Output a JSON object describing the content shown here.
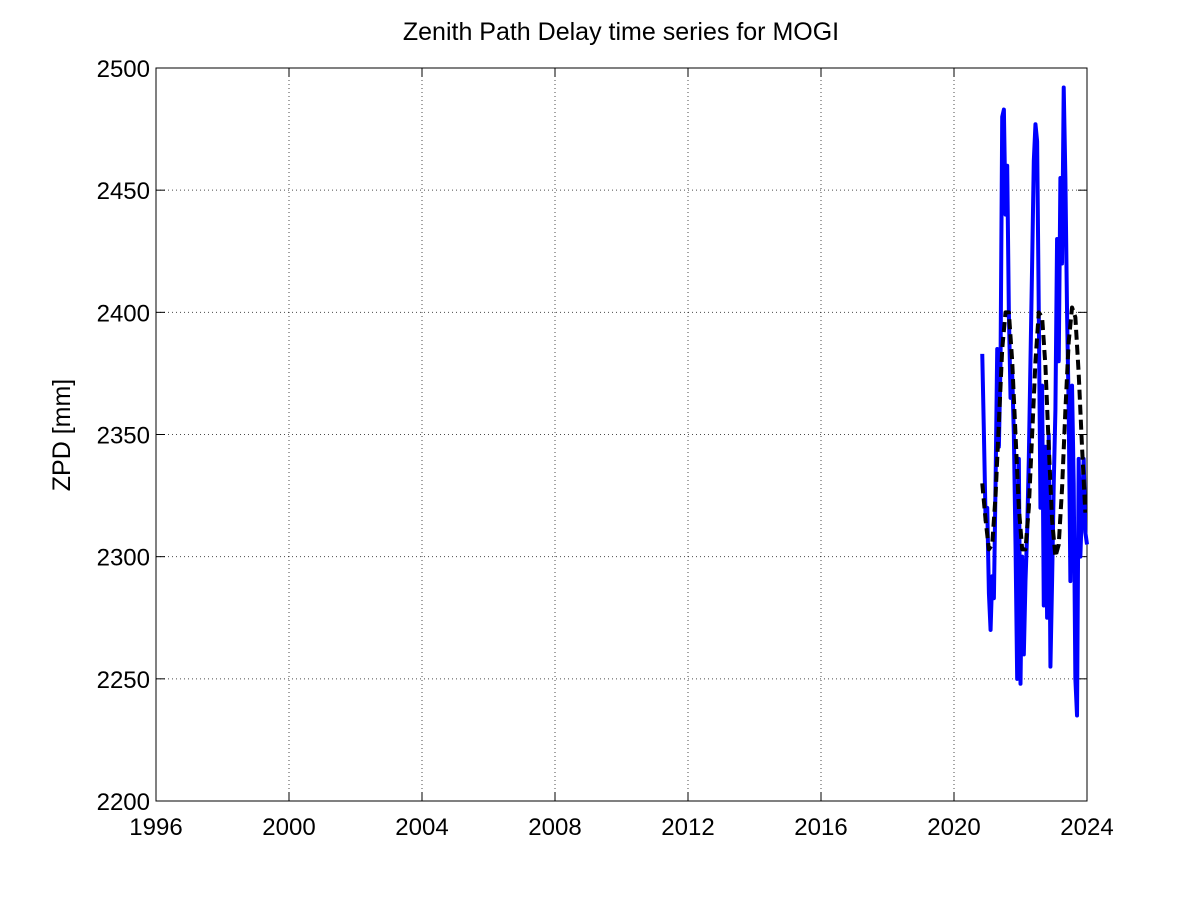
{
  "chart_data": {
    "type": "line",
    "title": "Zenith Path Delay time series for MOGI",
    "y_label": "ZPD [mm]",
    "xlim": [
      1996,
      2024
    ],
    "xticks": [
      1996,
      2000,
      2004,
      2008,
      2012,
      2016,
      2020,
      2024
    ],
    "ylim": [
      2200,
      2500
    ],
    "yticks": [
      2200,
      2250,
      2300,
      2350,
      2400,
      2450,
      2500
    ],
    "grid": true,
    "series": [
      {
        "color": "#0000ff",
        "dash": false,
        "x": [
          2020.85,
          2020.9,
          2020.95,
          2021.0,
          2021.05,
          2021.1,
          2021.15,
          2021.2,
          2021.25,
          2021.3,
          2021.35,
          2021.4,
          2021.45,
          2021.5,
          2021.55,
          2021.6,
          2021.65,
          2021.7,
          2021.75,
          2021.8,
          2021.85,
          2021.9,
          2021.95,
          2022.0,
          2022.05,
          2022.1,
          2022.15,
          2022.2,
          2022.25,
          2022.3,
          2022.35,
          2022.4,
          2022.45,
          2022.5,
          2022.55,
          2022.6,
          2022.65,
          2022.7,
          2022.75,
          2022.8,
          2022.85,
          2022.9,
          2022.95,
          2023.0,
          2023.05,
          2023.1,
          2023.15,
          2023.2,
          2023.25,
          2023.3,
          2023.35,
          2023.4,
          2023.45,
          2023.5,
          2023.55,
          2023.6,
          2023.65,
          2023.7,
          2023.75,
          2023.8,
          2023.85,
          2023.9,
          2023.95,
          2024.0
        ],
        "values": [
          2383,
          2350,
          2315,
          2320,
          2285,
          2270,
          2292,
          2283,
          2330,
          2385,
          2345,
          2380,
          2480,
          2483,
          2440,
          2460,
          2400,
          2365,
          2375,
          2350,
          2305,
          2250,
          2340,
          2248,
          2300,
          2260,
          2290,
          2310,
          2340,
          2380,
          2420,
          2462,
          2477,
          2470,
          2400,
          2320,
          2370,
          2280,
          2345,
          2275,
          2350,
          2255,
          2290,
          2330,
          2360,
          2430,
          2380,
          2455,
          2420,
          2492,
          2455,
          2400,
          2360,
          2290,
          2370,
          2330,
          2250,
          2235,
          2340,
          2300,
          2320,
          2340,
          2310,
          2305
        ]
      },
      {
        "color": "#000000",
        "dash": true,
        "x": [
          2020.85,
          2020.95,
          2021.05,
          2021.15,
          2021.25,
          2021.35,
          2021.45,
          2021.55,
          2021.65,
          2021.75,
          2021.85,
          2021.95,
          2022.05,
          2022.15,
          2022.25,
          2022.35,
          2022.45,
          2022.55,
          2022.65,
          2022.75,
          2022.85,
          2022.95,
          2023.05,
          2023.15,
          2023.25,
          2023.35,
          2023.45,
          2023.55,
          2023.65,
          2023.75,
          2023.85,
          2023.95
        ],
        "values": [
          2330,
          2315,
          2303,
          2305,
          2325,
          2355,
          2385,
          2400,
          2400,
          2380,
          2350,
          2320,
          2303,
          2303,
          2320,
          2350,
          2380,
          2400,
          2398,
          2378,
          2345,
          2315,
          2300,
          2305,
          2328,
          2360,
          2388,
          2402,
          2398,
          2375,
          2345,
          2318
        ]
      }
    ]
  }
}
